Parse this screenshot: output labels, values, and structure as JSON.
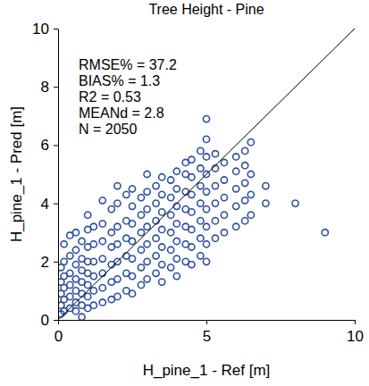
{
  "chart_data": {
    "type": "scatter",
    "title": "Tree Height - Pine",
    "x_label": "H_pine_1 - Ref [m]",
    "y_label": "H_pine_1 - Pred [m]",
    "annotations": [
      "RMSE% = 37.2",
      "BIAS% = 1.3",
      "R2 = 0.53",
      "MEANd = 2.8",
      "N = 2050"
    ],
    "color": "#2e4f9e",
    "marker": "open-circle",
    "xlim": [
      0,
      10
    ],
    "ylim": [
      0,
      10
    ],
    "xticks": [
      0,
      5,
      10
    ],
    "yticks": [
      0,
      2,
      4,
      6,
      8,
      10
    ],
    "x": [
      0.1,
      0.1,
      0.1,
      0.1,
      0.1,
      0.2,
      0.2,
      0.2,
      0.2,
      0.2,
      0.2,
      0.4,
      0.4,
      0.4,
      0.4,
      0.4,
      0.4,
      0.6,
      0.6,
      0.6,
      0.6,
      0.6,
      0.6,
      0.6,
      0.8,
      0.8,
      0.8,
      0.8,
      0.8,
      0.8,
      0.8,
      1.0,
      1.0,
      1.0,
      1.0,
      1.0,
      1.0,
      1.0,
      1.0,
      1.2,
      1.2,
      1.2,
      1.2,
      1.2,
      1.2,
      1.5,
      1.5,
      1.5,
      1.5,
      1.5,
      1.5,
      1.5,
      1.8,
      1.8,
      1.8,
      1.8,
      1.8,
      1.8,
      2.0,
      2.0,
      2.0,
      2.0,
      2.0,
      2.0,
      2.0,
      2.3,
      2.3,
      2.3,
      2.3,
      2.3,
      2.3,
      2.5,
      2.5,
      2.5,
      2.5,
      2.5,
      2.5,
      2.5,
      2.8,
      2.8,
      2.8,
      2.8,
      2.8,
      2.8,
      3.0,
      3.0,
      3.0,
      3.0,
      3.0,
      3.0,
      3.0,
      3.3,
      3.3,
      3.3,
      3.3,
      3.3,
      3.3,
      3.5,
      3.5,
      3.5,
      3.5,
      3.5,
      3.5,
      3.5,
      3.8,
      3.8,
      3.8,
      3.8,
      3.8,
      3.8,
      4.0,
      4.0,
      4.0,
      4.0,
      4.0,
      4.0,
      4.0,
      4.3,
      4.3,
      4.3,
      4.3,
      4.3,
      4.3,
      4.3,
      4.5,
      4.5,
      4.5,
      4.5,
      4.5,
      4.5,
      4.5,
      4.8,
      4.8,
      4.8,
      4.8,
      4.8,
      4.8,
      4.8,
      5.0,
      5.0,
      5.0,
      5.0,
      5.0,
      5.0,
      5.0,
      5.0,
      5.0,
      5.3,
      5.3,
      5.3,
      5.3,
      5.3,
      5.3,
      5.6,
      5.6,
      5.6,
      5.6,
      5.6,
      6.0,
      6.0,
      6.0,
      6.0,
      6.0,
      6.3,
      6.3,
      6.3,
      6.3,
      6.3,
      6.5,
      6.5,
      6.5,
      6.5,
      7.0,
      7.0,
      8.0,
      9.0
    ],
    "values": [
      0.2,
      0.5,
      0.9,
      1.3,
      1.8,
      0.3,
      0.7,
      1.1,
      1.5,
      2.0,
      2.6,
      0.4,
      0.8,
      1.2,
      1.6,
      2.2,
      2.9,
      0.3,
      0.6,
      1.0,
      1.4,
      1.9,
      2.4,
      3.0,
      0.1,
      0.5,
      0.9,
      1.3,
      1.7,
      2.1,
      2.7,
      0.4,
      0.8,
      1.2,
      1.6,
      2.0,
      2.5,
      3.1,
      3.6,
      0.5,
      1.0,
      1.5,
      2.0,
      2.6,
      3.2,
      0.6,
      1.1,
      1.6,
      2.1,
      2.7,
      3.3,
      4.1,
      0.7,
      1.3,
      1.9,
      2.5,
      3.0,
      3.8,
      0.8,
      1.4,
      2.0,
      2.6,
      3.2,
      4.0,
      4.6,
      1.0,
      1.6,
      2.2,
      2.8,
      3.4,
      4.3,
      0.9,
      1.5,
      2.1,
      2.7,
      3.3,
      3.9,
      4.5,
      1.2,
      1.8,
      2.4,
      3.0,
      3.6,
      4.2,
      1.4,
      2.0,
      2.6,
      3.2,
      3.8,
      4.4,
      5.0,
      1.6,
      2.2,
      2.8,
      3.4,
      4.0,
      4.6,
      1.3,
      1.9,
      2.5,
      3.1,
      3.7,
      4.3,
      4.9,
      1.8,
      2.4,
      3.0,
      3.6,
      4.2,
      4.8,
      1.5,
      2.1,
      2.7,
      3.3,
      3.9,
      4.5,
      5.1,
      2.0,
      2.6,
      3.2,
      3.8,
      4.4,
      5.0,
      5.4,
      1.9,
      2.5,
      3.1,
      3.7,
      4.3,
      4.9,
      5.5,
      2.2,
      2.8,
      3.4,
      4.0,
      4.6,
      5.2,
      5.8,
      2.0,
      2.6,
      3.2,
      3.8,
      4.4,
      5.0,
      5.6,
      6.2,
      6.9,
      2.8,
      3.4,
      4.0,
      4.6,
      5.2,
      5.7,
      3.0,
      3.6,
      4.2,
      4.8,
      5.4,
      3.2,
      3.9,
      4.5,
      5.1,
      5.6,
      3.4,
      4.1,
      4.7,
      5.3,
      5.8,
      3.6,
      4.3,
      5.0,
      6.1,
      4.0,
      4.6,
      4.0,
      3.0
    ]
  }
}
